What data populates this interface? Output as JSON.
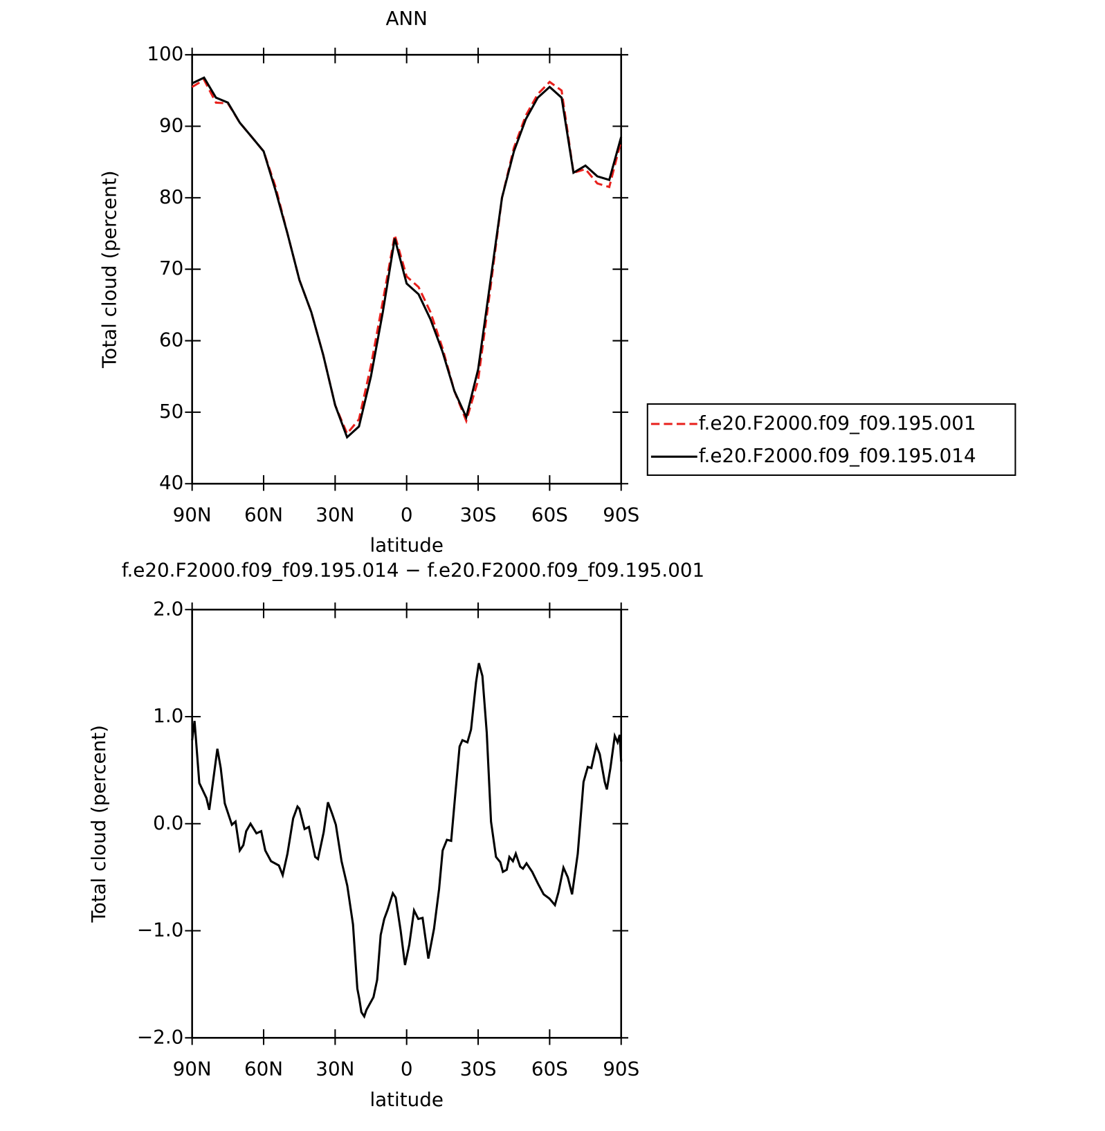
{
  "chart_data": [
    {
      "type": "line",
      "title": "ANN",
      "xlabel": "latitude",
      "ylabel": "Total cloud (percent)",
      "xlim": [
        90,
        -90
      ],
      "xticks": [
        {
          "value": 90,
          "label": "90N"
        },
        {
          "value": 60,
          "label": "60N"
        },
        {
          "value": 30,
          "label": "30N"
        },
        0,
        {
          "value": -30,
          "label": "30S"
        },
        {
          "value": -60,
          "label": "60S"
        },
        {
          "value": -90,
          "label": "90S"
        }
      ],
      "ylim": [
        40,
        100
      ],
      "yticks": [
        40,
        50,
        60,
        70,
        80,
        90,
        100
      ],
      "legend": "right",
      "x": [
        90,
        85,
        80,
        75,
        70,
        65,
        60,
        55,
        50,
        45,
        40,
        35,
        30,
        25,
        20,
        15,
        10,
        5,
        0,
        -5,
        -10,
        -15,
        -20,
        -25,
        -30,
        -35,
        -40,
        -45,
        -50,
        -55,
        -60,
        -65,
        -70,
        -75,
        -80,
        -85,
        -90
      ],
      "series": [
        {
          "name": "f.e20.F2000.f09_f09.195.001",
          "color": "#e8201c",
          "dash": "dashed",
          "values": [
            95.5,
            96.5,
            93.3,
            93.2,
            90.5,
            88.5,
            86.5,
            81.5,
            75,
            68.5,
            64,
            58,
            51,
            47,
            49,
            56.5,
            65.5,
            74.8,
            69,
            67.5,
            64,
            59,
            53,
            48.8,
            54.5,
            67,
            80,
            87,
            91.5,
            94.5,
            96.2,
            95,
            83.5,
            84,
            82,
            81.5,
            88
          ]
        },
        {
          "name": "f.e20.F2000.f09_f09.195.014",
          "color": "#000000",
          "dash": "solid",
          "values": [
            96,
            96.8,
            94,
            93.3,
            90.5,
            88.5,
            86.5,
            81,
            75,
            68.5,
            64,
            58,
            51,
            46.5,
            48,
            55,
            64,
            74.3,
            68,
            66.5,
            63,
            58.5,
            53,
            49.3,
            56,
            68,
            80,
            86.5,
            91,
            94,
            95.5,
            94,
            83.5,
            84.5,
            83,
            82.5,
            88.5
          ]
        }
      ]
    },
    {
      "type": "line",
      "title": "f.e20.F2000.f09_f09.195.014 − f.e20.F2000.f09_f09.195.001",
      "xlabel": "latitude",
      "ylabel": "Total cloud (percent)",
      "xlim": [
        90,
        -90
      ],
      "xticks": [
        {
          "value": 90,
          "label": "90N"
        },
        {
          "value": 60,
          "label": "60N"
        },
        {
          "value": 30,
          "label": "30N"
        },
        0,
        {
          "value": -30,
          "label": "30S"
        },
        {
          "value": -60,
          "label": "60S"
        },
        {
          "value": -90,
          "label": "90S"
        }
      ],
      "ylim": [
        -2,
        2
      ],
      "yticks": [
        {
          "value": -2,
          "label": "−2.0"
        },
        {
          "value": -1,
          "label": "−1.0"
        },
        {
          "value": 0,
          "label": "0.0"
        },
        {
          "value": 1,
          "label": "1.0"
        },
        {
          "value": 2,
          "label": "2.0"
        }
      ],
      "x": [
        90,
        89,
        87,
        84,
        82.8,
        80,
        79.4,
        78,
        76.3,
        73.3,
        71.8,
        70,
        68.5,
        67.3,
        65.5,
        63,
        61,
        59.3,
        56.9,
        53.6,
        52,
        50,
        47.6,
        45.8,
        45,
        42.8,
        41,
        38.4,
        37.2,
        34.8,
        33,
        31.2,
        29.7,
        27.3,
        24.9,
        22.5,
        20.7,
        19.9,
        19,
        17.8,
        16.9,
        13.9,
        12.4,
        10.9,
        9.4,
        7.9,
        5.8,
        4.6,
        2.5,
        0.7,
        -1.1,
        -3.1,
        -4.9,
        -6.7,
        -9.1,
        -11.5,
        -13.6,
        -15.1,
        -16.9,
        -18.7,
        -20.4,
        -22.2,
        -23.4,
        -25.5,
        -27,
        -29.1,
        -30.3,
        -31.8,
        -33.6,
        -35.4,
        -37.5,
        -39.3,
        -40.4,
        -42,
        -43.1,
        -44.6,
        -45.8,
        -47.6,
        -48.8,
        -50.3,
        -52.7,
        -55.1,
        -57.5,
        -59.9,
        -62.2,
        -63.7,
        -65.8,
        -67.6,
        -69.4,
        -71.8,
        -74.2,
        -76,
        -77.5,
        -79.6,
        -81,
        -83.1,
        -84,
        -85.5,
        -87.3,
        -88.5,
        -89.4,
        -90
      ],
      "series": [
        {
          "color": "#000000",
          "dash": "solid",
          "values": [
            0.78,
            0.96,
            0.38,
            0.24,
            0.13,
            0.6,
            0.7,
            0.52,
            0.19,
            -0.01,
            0.02,
            -0.25,
            -0.2,
            -0.07,
            0.0,
            -0.09,
            -0.07,
            -0.25,
            -0.35,
            -0.39,
            -0.48,
            -0.28,
            0.05,
            0.16,
            0.14,
            -0.05,
            -0.03,
            -0.31,
            -0.33,
            -0.08,
            0.2,
            0.09,
            -0.01,
            -0.35,
            -0.58,
            -0.94,
            -1.54,
            -1.63,
            -1.76,
            -1.8,
            -1.74,
            -1.62,
            -1.46,
            -1.04,
            -0.89,
            -0.8,
            -0.65,
            -0.69,
            -1.0,
            -1.32,
            -1.13,
            -0.81,
            -0.89,
            -0.88,
            -1.26,
            -0.98,
            -0.61,
            -0.25,
            -0.15,
            -0.16,
            0.27,
            0.72,
            0.78,
            0.76,
            0.88,
            1.32,
            1.5,
            1.38,
            0.85,
            0.02,
            -0.31,
            -0.36,
            -0.45,
            -0.43,
            -0.31,
            -0.35,
            -0.28,
            -0.4,
            -0.42,
            -0.37,
            -0.45,
            -0.56,
            -0.66,
            -0.7,
            -0.76,
            -0.64,
            -0.41,
            -0.5,
            -0.66,
            -0.28,
            0.39,
            0.53,
            0.52,
            0.73,
            0.65,
            0.39,
            0.32,
            0.52,
            0.82,
            0.76,
            0.83,
            0.58
          ]
        }
      ]
    }
  ]
}
